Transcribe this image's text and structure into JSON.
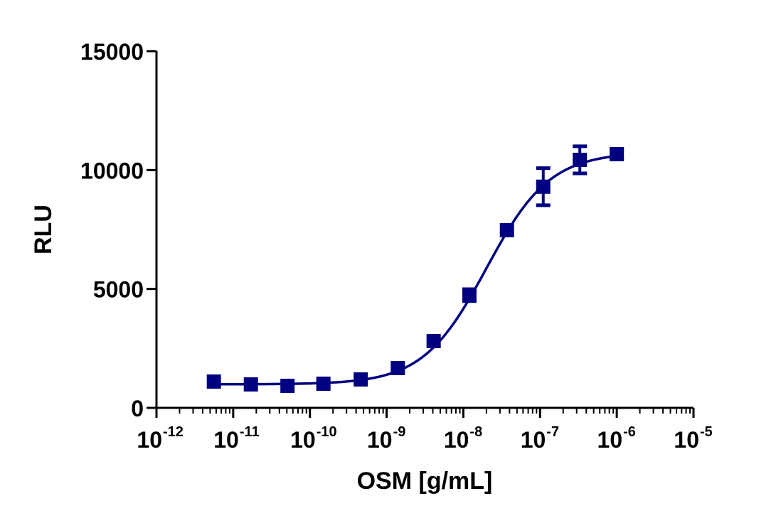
{
  "chart_data": {
    "type": "scatter",
    "title": "",
    "xlabel": "OSM [g/mL]",
    "ylabel": "RLU",
    "x_scale": "log",
    "xlim": [
      1e-12,
      1e-05
    ],
    "ylim": [
      0,
      15000
    ],
    "x_ticks": [
      {
        "base": "10",
        "exp": "-12"
      },
      {
        "base": "10",
        "exp": "-11"
      },
      {
        "base": "10",
        "exp": "-10"
      },
      {
        "base": "10",
        "exp": "-9"
      },
      {
        "base": "10",
        "exp": "-8"
      },
      {
        "base": "10",
        "exp": "-7"
      },
      {
        "base": "10",
        "exp": "-6"
      },
      {
        "base": "10",
        "exp": "-5"
      }
    ],
    "y_ticks": [
      "0",
      "5000",
      "10000",
      "15000"
    ],
    "grid": false,
    "marker_color": "#000080",
    "series": [
      {
        "points": [
          {
            "x": 5.6e-12,
            "y": 1106,
            "err": 0
          },
          {
            "x": 1.7e-11,
            "y": 986,
            "err": 0
          },
          {
            "x": 5.1e-11,
            "y": 927,
            "err": 0
          },
          {
            "x": 1.5e-10,
            "y": 1016,
            "err": 0
          },
          {
            "x": 4.6e-10,
            "y": 1195,
            "err": 0
          },
          {
            "x": 1.4e-09,
            "y": 1674,
            "err": 0
          },
          {
            "x": 4.1e-09,
            "y": 2809,
            "err": 0
          },
          {
            "x": 1.2e-08,
            "y": 4740,
            "err": 250
          },
          {
            "x": 3.7e-08,
            "y": 7470,
            "err": 0
          },
          {
            "x": 1.1e-07,
            "y": 9300,
            "err": 780
          },
          {
            "x": 3.3e-07,
            "y": 10430,
            "err": 570
          },
          {
            "x": 1e-06,
            "y": 10670,
            "err": 200
          }
        ],
        "fit": {
          "model": "4PL",
          "bottom": 990,
          "top": 10750,
          "ec50": 2e-08,
          "hill": 1.05
        }
      }
    ]
  }
}
